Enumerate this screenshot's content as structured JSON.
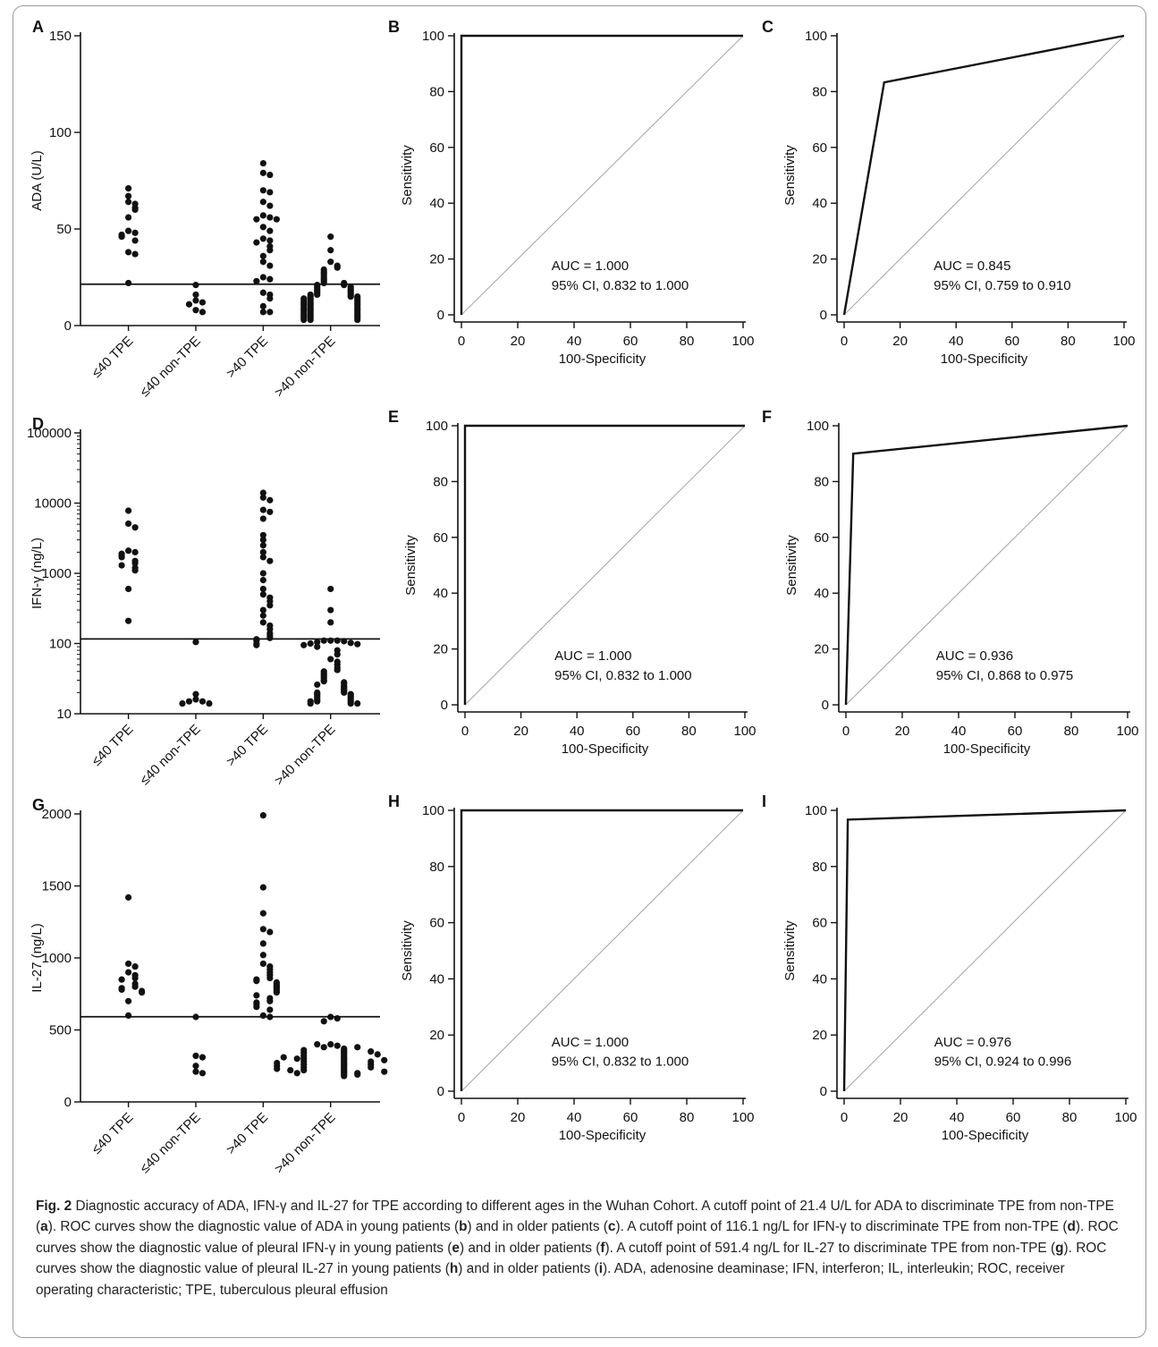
{
  "chart_data": [
    {
      "panel": "A",
      "type": "scatter",
      "ylabel": "ADA (U/L)",
      "xlabel": "",
      "scale": "linear",
      "ylim": [
        0,
        150
      ],
      "yticks": [
        0,
        50,
        100,
        150
      ],
      "ytick_labels": [
        "0",
        "50",
        "100",
        "150"
      ],
      "categories": [
        "≤40 TPE",
        "≤40 non-TPE",
        ">40 TPE",
        ">40 non-TPE"
      ],
      "cutoff": 21.4,
      "groups": [
        [
          71,
          67,
          64,
          63,
          61,
          60,
          56,
          49,
          48,
          47,
          46,
          44,
          38,
          37,
          22
        ],
        [
          21,
          16,
          13,
          12,
          11,
          8,
          7
        ],
        [
          84,
          79,
          78,
          70,
          69,
          64,
          62,
          57,
          56,
          55,
          55,
          51,
          49,
          45,
          44,
          43,
          41,
          39,
          36,
          33,
          31,
          25,
          24,
          23,
          17,
          16,
          14,
          10,
          7,
          7
        ],
        [
          46,
          39,
          33,
          31,
          30,
          29,
          28,
          27,
          26,
          25,
          24,
          23,
          22,
          22,
          21,
          21,
          20,
          20,
          19,
          19,
          18,
          18,
          17,
          17,
          16,
          16,
          16,
          15,
          15,
          15,
          14,
          14,
          14,
          13,
          13,
          13,
          12,
          12,
          12,
          11,
          11,
          11,
          10,
          10,
          10,
          9,
          9,
          9,
          8,
          8,
          8,
          7,
          7,
          7,
          6,
          6,
          6,
          5,
          5,
          5,
          4,
          4,
          4,
          3,
          3,
          3
        ]
      ]
    },
    {
      "panel": "B",
      "type": "line",
      "xlabel": "100-Specificity",
      "ylabel": "Sensitivity",
      "xlim": [
        0,
        100
      ],
      "ylim": [
        0,
        100
      ],
      "x": [
        0,
        0,
        100
      ],
      "y": [
        0,
        100,
        100
      ],
      "diagonal": true,
      "annotation": [
        "AUC = 1.000",
        "95% CI, 0.832 to 1.000"
      ]
    },
    {
      "panel": "C",
      "type": "line",
      "xlabel": "100-Specificity",
      "ylabel": "Sensitivity",
      "xlim": [
        0,
        100
      ],
      "ylim": [
        0,
        100
      ],
      "x": [
        0,
        14.3,
        100
      ],
      "y": [
        0,
        83.3,
        100
      ],
      "diagonal": true,
      "annotation": [
        "AUC = 0.845",
        "95% CI, 0.759 to 0.910"
      ]
    },
    {
      "panel": "D",
      "type": "scatter",
      "ylabel": "IFN-γ (ng/L)",
      "xlabel": "",
      "scale": "log",
      "ylim": [
        10,
        100000
      ],
      "yticks": [
        10,
        100,
        1000,
        10000,
        100000
      ],
      "ytick_labels": [
        "10",
        "100",
        "1000",
        "10000",
        "100000"
      ],
      "categories": [
        "≤40 TPE",
        "≤40 non-TPE",
        ">40 TPE",
        ">40 non-TPE"
      ],
      "cutoff": 116.1,
      "groups": [
        [
          7800,
          5100,
          4500,
          2100,
          2000,
          1900,
          1800,
          1700,
          1500,
          1400,
          1300,
          1200,
          1100,
          600,
          210
        ],
        [
          105,
          19,
          16,
          15,
          15,
          14,
          14
        ],
        [
          14000,
          12000,
          11000,
          8000,
          7500,
          6000,
          3500,
          3000,
          2500,
          2000,
          1700,
          1500,
          1000,
          800,
          600,
          500,
          450,
          400,
          350,
          300,
          250,
          200,
          180,
          160,
          140,
          130,
          120,
          115,
          110,
          100,
          95
        ],
        [
          600,
          300,
          200,
          110,
          110,
          110,
          108,
          105,
          102,
          100,
          98,
          95,
          90,
          80,
          70,
          60,
          55,
          50,
          45,
          42,
          40,
          38,
          36,
          34,
          32,
          30,
          29,
          28,
          27,
          26,
          25,
          24,
          23,
          22,
          21,
          20,
          20,
          19,
          19,
          18,
          18,
          17,
          17,
          16,
          16,
          15,
          15,
          15,
          14,
          14,
          14
        ]
      ]
    },
    {
      "panel": "E",
      "type": "line",
      "xlabel": "100-Specificity",
      "ylabel": "Sensitivity",
      "xlim": [
        0,
        100
      ],
      "ylim": [
        0,
        100
      ],
      "x": [
        0,
        0,
        100
      ],
      "y": [
        0,
        100,
        100
      ],
      "diagonal": true,
      "annotation": [
        "AUC = 1.000",
        "95% CI, 0.832 to 1.000"
      ]
    },
    {
      "panel": "F",
      "type": "line",
      "xlabel": "100-Specificity",
      "ylabel": "Sensitivity",
      "xlim": [
        0,
        100
      ],
      "ylim": [
        0,
        100
      ],
      "x": [
        0,
        2.6,
        100
      ],
      "y": [
        0,
        90,
        100
      ],
      "diagonal": true,
      "annotation": [
        "AUC = 0.936",
        "95% CI, 0.868 to 0.975"
      ]
    },
    {
      "panel": "G",
      "type": "scatter",
      "ylabel": "IL-27 (ng/L)",
      "xlabel": "",
      "scale": "linear",
      "ylim": [
        0,
        2000
      ],
      "yticks": [
        0,
        500,
        1000,
        1500,
        2000
      ],
      "ytick_labels": [
        "0",
        "500",
        "1000",
        "1500",
        "2000"
      ],
      "categories": [
        "≤40 TPE",
        "≤40 non-TPE",
        ">40 TPE",
        ">40 non-TPE"
      ],
      "cutoff": 591.4,
      "groups": [
        [
          1420,
          960,
          940,
          900,
          880,
          860,
          850,
          820,
          800,
          790,
          780,
          770,
          760,
          700,
          600
        ],
        [
          590,
          320,
          310,
          250,
          210,
          200
        ],
        [
          1990,
          1490,
          1310,
          1200,
          1180,
          1100,
          1020,
          960,
          940,
          920,
          900,
          880,
          860,
          850,
          840,
          830,
          820,
          810,
          800,
          790,
          780,
          770,
          760,
          740,
          720,
          700,
          690,
          680,
          660,
          640,
          600,
          590
        ],
        [
          590,
          580,
          560,
          400,
          390,
          380,
          370,
          360,
          350,
          340,
          330,
          320,
          310,
          300,
          290,
          280,
          270,
          260,
          250,
          240,
          230,
          220,
          210,
          200,
          190,
          180,
          400,
          380,
          360,
          340,
          320,
          300,
          280,
          260,
          240,
          220,
          200,
          190,
          300,
          280,
          260,
          240,
          220,
          200,
          350,
          330,
          310,
          290,
          270,
          250,
          230,
          210
        ]
      ]
    },
    {
      "panel": "H",
      "type": "line",
      "xlabel": "100-Specificity",
      "ylabel": "Sensitivity",
      "xlim": [
        0,
        100
      ],
      "ylim": [
        0,
        100
      ],
      "x": [
        0,
        0,
        100
      ],
      "y": [
        0,
        100,
        100
      ],
      "diagonal": true,
      "annotation": [
        "AUC = 1.000",
        "95% CI, 0.832 to 1.000"
      ]
    },
    {
      "panel": "I",
      "type": "line",
      "xlabel": "100-Specificity",
      "ylabel": "Sensitivity",
      "xlim": [
        0,
        100
      ],
      "ylim": [
        0,
        100
      ],
      "x": [
        0,
        1.3,
        100
      ],
      "y": [
        0,
        96.7,
        100
      ],
      "diagonal": true,
      "annotation": [
        "AUC = 0.976",
        "95% CI, 0.924 to 0.996"
      ]
    }
  ],
  "roc_ticks": [
    0,
    20,
    40,
    60,
    80,
    100
  ],
  "caption": {
    "lead": "Fig. 2",
    "segments": [
      {
        "t": " Diagnostic accuracy of ADA, IFN-γ and IL-27 for TPE according to different ages in the Wuhan Cohort. A cutoff point of 21.4 U/L for ADA to discriminate TPE from non-TPE ("
      },
      {
        "b": "a"
      },
      {
        "t": "). ROC curves show the diagnostic value of ADA in young patients ("
      },
      {
        "b": "b"
      },
      {
        "t": ") and in older patients ("
      },
      {
        "b": "c"
      },
      {
        "t": "). A cutoff point of 116.1 ng/L for IFN-γ to discriminate TPE from non-TPE ("
      },
      {
        "b": "d"
      },
      {
        "t": "). ROC curves show the diagnostic value of pleural IFN-γ in young patients ("
      },
      {
        "b": "e"
      },
      {
        "t": ") and in older patients ("
      },
      {
        "b": "f"
      },
      {
        "t": "). A cutoff point of 591.4 ng/L for IL-27 to discriminate TPE from non-TPE ("
      },
      {
        "b": "g"
      },
      {
        "t": "). ROC curves show the diagnostic value of pleural IL-27 in young patients ("
      },
      {
        "b": "h"
      },
      {
        "t": ") and in older patients ("
      },
      {
        "b": "i"
      },
      {
        "t": "). ADA, adenosine deaminase; IFN, interferon; IL, interleukin; ROC, receiver operating characteristic; TPE, tuberculous pleural effusion"
      }
    ]
  }
}
